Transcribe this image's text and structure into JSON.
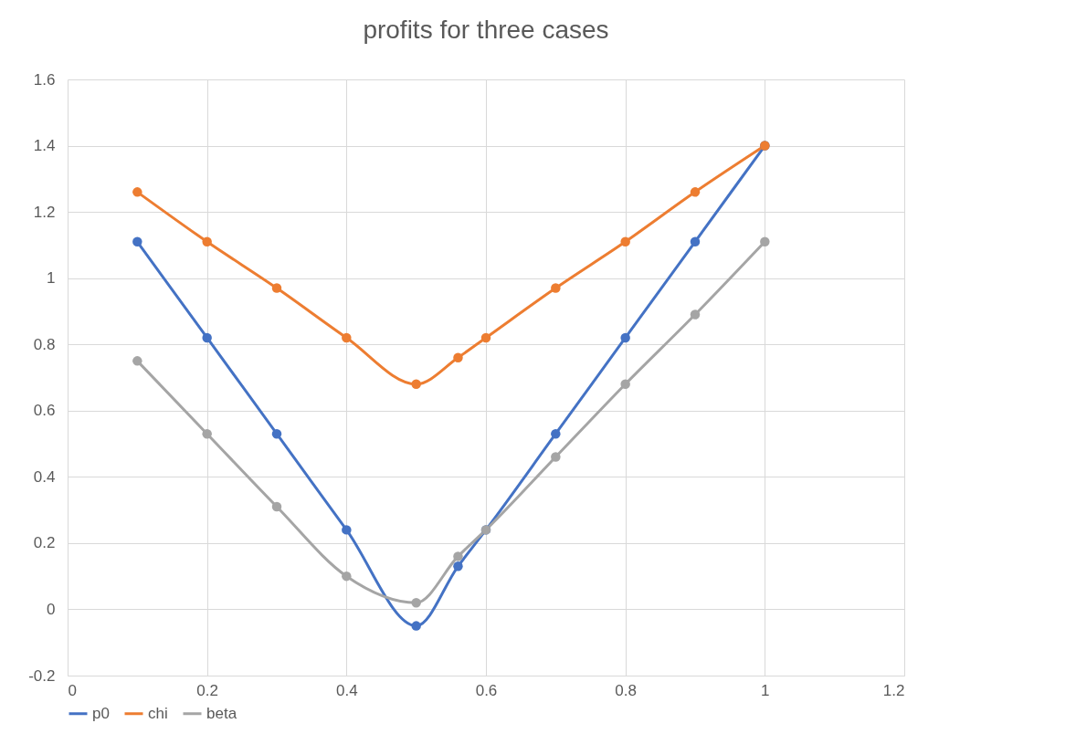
{
  "chart_data": {
    "type": "line",
    "title": "profits for three cases",
    "x": [
      0.1,
      0.2,
      0.3,
      0.4,
      0.5,
      0.56,
      0.6,
      0.7,
      0.8,
      0.9,
      1
    ],
    "series": [
      {
        "name": "p0",
        "color": "#4472c4",
        "values": [
          1.11,
          0.82,
          0.53,
          0.24,
          -0.05,
          0.13,
          0.24,
          0.53,
          0.82,
          1.11,
          1.4
        ]
      },
      {
        "name": "chi",
        "color": "#ed7d31",
        "values": [
          1.26,
          1.11,
          0.97,
          0.82,
          0.68,
          0.76,
          0.82,
          0.97,
          1.11,
          1.26,
          1.4
        ]
      },
      {
        "name": "beta",
        "color": "#a5a5a5",
        "values": [
          0.75,
          0.53,
          0.31,
          0.1,
          0.02,
          0.16,
          0.24,
          0.46,
          0.68,
          0.89,
          1.11
        ]
      }
    ],
    "xlim": [
      0,
      1.2
    ],
    "xticks": [
      0,
      0.2,
      0.4,
      0.6,
      0.8,
      1,
      1.2
    ],
    "ylim": [
      -0.2,
      1.6
    ],
    "yticks": [
      -0.2,
      0,
      0.2,
      0.4,
      0.6,
      0.8,
      1,
      1.2,
      1.4,
      1.6
    ],
    "grid": true,
    "legend": "bottom",
    "marker": "circle",
    "line_style": "solid"
  }
}
